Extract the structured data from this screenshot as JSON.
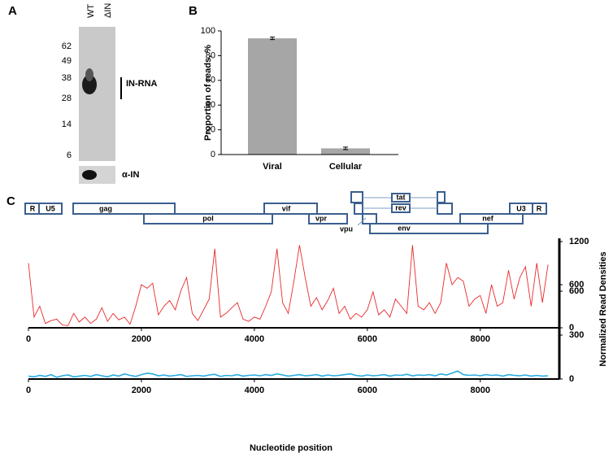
{
  "panel_labels": [
    "A",
    "B",
    "C"
  ],
  "gel": {
    "lanes": [
      "WT",
      "ΔIN"
    ],
    "markers": [
      62,
      49,
      38,
      28,
      14,
      6
    ],
    "band_label": "IN-RNA",
    "blot_label": "α-IN"
  },
  "gene_map": {
    "labels": [
      "R",
      "U5",
      "gag",
      "pol",
      "vif",
      "vpr",
      "vpu",
      "tat",
      "rev",
      "env",
      "nef",
      "U3",
      "R"
    ]
  },
  "chart_data": [
    {
      "type": "bar",
      "ylabel": "Proportion of reads, %",
      "categories": [
        "Viral",
        "Cellular"
      ],
      "values": [
        94,
        5
      ],
      "errors": [
        1,
        1
      ],
      "color": "#a6a6a6",
      "ylim": [
        0,
        100
      ],
      "yticks": [
        0,
        20,
        40,
        60,
        80,
        100
      ]
    },
    {
      "type": "line",
      "ylabel": "Normalized Read Densities",
      "x": [
        0,
        100,
        200,
        300,
        400,
        500,
        600,
        700,
        800,
        900,
        1000,
        1100,
        1200,
        1300,
        1400,
        1500,
        1600,
        1700,
        1800,
        1900,
        2000,
        2100,
        2200,
        2300,
        2400,
        2500,
        2600,
        2700,
        2800,
        2900,
        3000,
        3100,
        3200,
        3300,
        3400,
        3500,
        3600,
        3700,
        3800,
        3900,
        4000,
        4100,
        4200,
        4300,
        4400,
        4500,
        4600,
        4700,
        4800,
        4900,
        5000,
        5100,
        5200,
        5300,
        5400,
        5500,
        5600,
        5700,
        5800,
        5900,
        6000,
        6100,
        6200,
        6300,
        6400,
        6500,
        6600,
        6700,
        6800,
        6900,
        7000,
        7100,
        7200,
        7300,
        7400,
        7500,
        7600,
        7700,
        7800,
        7900,
        8000,
        8100,
        8200,
        8300,
        8400,
        8500,
        8600,
        8700,
        8800,
        8900,
        9000,
        9100,
        9200
      ],
      "series": [
        {
          "color": "#e8292a",
          "values": [
            900,
            150,
            300,
            60,
            100,
            120,
            40,
            30,
            200,
            80,
            150,
            60,
            120,
            280,
            90,
            200,
            110,
            150,
            50,
            300,
            600,
            550,
            620,
            180,
            300,
            380,
            250,
            520,
            700,
            200,
            100,
            250,
            400,
            1100,
            150,
            200,
            280,
            350,
            120,
            90,
            150,
            120,
            300,
            500,
            1100,
            350,
            200,
            650,
            1150,
            700,
            300,
            420,
            250,
            380,
            550,
            200,
            300,
            120,
            200,
            150,
            250,
            500,
            180,
            250,
            150,
            400,
            300,
            200,
            1150,
            300,
            250,
            350,
            200,
            350,
            900,
            600,
            700,
            650,
            300,
            400,
            450,
            200,
            600,
            300,
            350,
            800,
            400,
            700,
            850,
            300,
            900,
            350,
            880
          ]
        }
      ],
      "xlim": [
        0,
        9400
      ],
      "xticks": [
        0,
        2000,
        4000,
        6000,
        8000
      ],
      "ylim": [
        0,
        1200
      ],
      "yticks": [
        0,
        600,
        1200
      ]
    },
    {
      "type": "line",
      "xlabel": "Nucleotide position",
      "x": [
        0,
        100,
        200,
        300,
        400,
        500,
        600,
        700,
        800,
        900,
        1000,
        1100,
        1200,
        1300,
        1400,
        1500,
        1600,
        1700,
        1800,
        1900,
        2000,
        2100,
        2200,
        2300,
        2400,
        2500,
        2600,
        2700,
        2800,
        2900,
        3000,
        3100,
        3200,
        3300,
        3400,
        3500,
        3600,
        3700,
        3800,
        3900,
        4000,
        4100,
        4200,
        4300,
        4400,
        4500,
        4600,
        4700,
        4800,
        4900,
        5000,
        5100,
        5200,
        5300,
        5400,
        5500,
        5600,
        5700,
        5800,
        5900,
        6000,
        6100,
        6200,
        6300,
        6400,
        6500,
        6600,
        6700,
        6800,
        6900,
        7000,
        7100,
        7200,
        7300,
        7400,
        7500,
        7600,
        7700,
        7800,
        7900,
        8000,
        8100,
        8200,
        8300,
        8400,
        8500,
        8600,
        8700,
        8800,
        8900,
        9000,
        9100,
        9200
      ],
      "series": [
        {
          "color": "#29abe2",
          "values": [
            20,
            15,
            25,
            18,
            30,
            12,
            22,
            28,
            15,
            20,
            25,
            18,
            30,
            22,
            15,
            28,
            20,
            35,
            25,
            18,
            30,
            40,
            35,
            22,
            28,
            20,
            25,
            30,
            18,
            22,
            25,
            20,
            28,
            32,
            18,
            25,
            22,
            30,
            20,
            25,
            28,
            22,
            30,
            25,
            35,
            28,
            20,
            25,
            30,
            22,
            25,
            30,
            20,
            28,
            22,
            25,
            30,
            35,
            25,
            20,
            28,
            22,
            25,
            30,
            20,
            28,
            25,
            32,
            22,
            28,
            25,
            30,
            22,
            35,
            28,
            40,
            55,
            30,
            25,
            28,
            22,
            30,
            25,
            28,
            20,
            30,
            25,
            22,
            28,
            20,
            25,
            20,
            22
          ]
        }
      ],
      "xlim": [
        0,
        9400
      ],
      "xticks": [
        0,
        2000,
        4000,
        6000,
        8000
      ],
      "ylim": [
        0,
        600
      ],
      "yticks": [
        0,
        300,
        600
      ]
    }
  ]
}
